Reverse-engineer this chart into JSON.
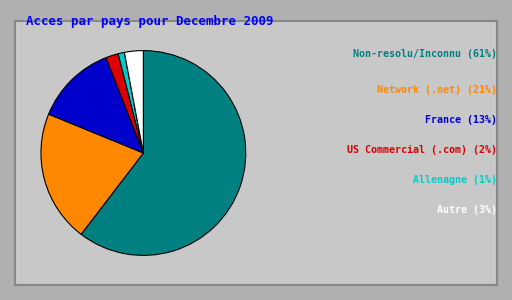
{
  "title": "Acces par pays pour Decembre 2009",
  "title_color": "#0000ff",
  "title_fontsize": 9,
  "slices": [
    61,
    21,
    13,
    2,
    1,
    3
  ],
  "labels": [
    "Non-resolu/Inconnu (61%)",
    "Network (.net) (21%)",
    "France (13%)",
    "US Commercial (.com) (2%)",
    "Allenagne (1%)",
    "Autre (3%)"
  ],
  "colors": [
    "#008080",
    "#ff8800",
    "#0000cc",
    "#dd0000",
    "#00cccc",
    "#ffffff"
  ],
  "legend_text_colors": [
    "#008080",
    "#ff8800",
    "#0000cc",
    "#dd0000",
    "#00cccc",
    "#ffffff"
  ],
  "background_color": "#b0b0b0",
  "plot_background": "#c8c8c8",
  "border_color": "#888888",
  "startangle": 90,
  "font": "monospace"
}
